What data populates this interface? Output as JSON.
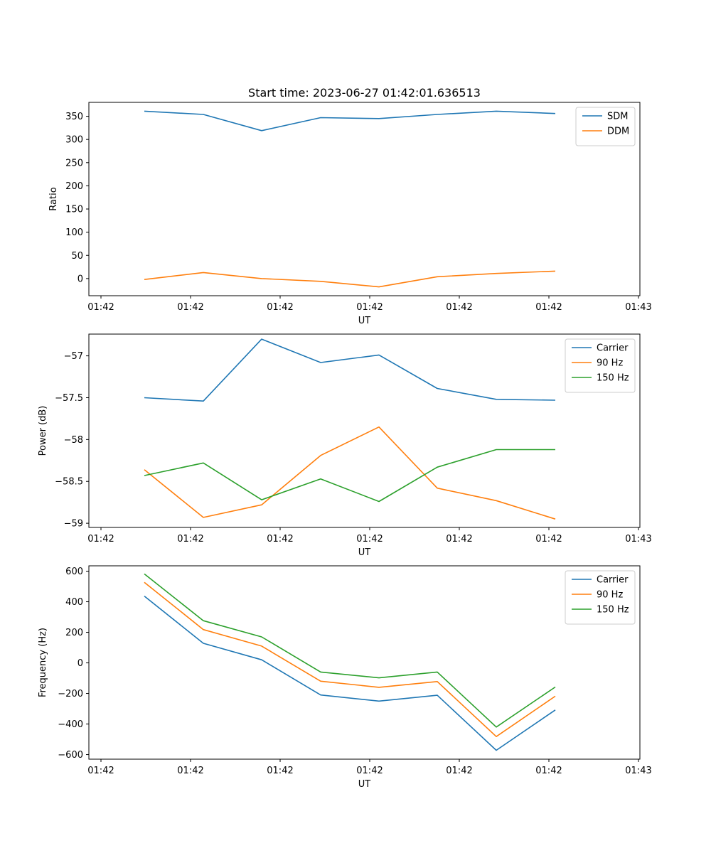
{
  "chart_data": [
    {
      "type": "line",
      "title": "Start time: 2023-06-27 01:42:01.636513",
      "xlabel": "UT",
      "ylabel": "Ratio",
      "x_tick_labels": [
        "01:42",
        "01:42",
        "01:42",
        "01:42",
        "01:42",
        "01:42",
        "01:43"
      ],
      "ylim": [
        -37,
        380
      ],
      "yticks": [
        0,
        50,
        100,
        150,
        200,
        250,
        300,
        350
      ],
      "legend_position": "top-right",
      "series": [
        {
          "name": "SDM",
          "color": "#1f77b4",
          "values": [
            361,
            354,
            319,
            347,
            345,
            354,
            361,
            356
          ]
        },
        {
          "name": "DDM",
          "color": "#ff7f0e",
          "values": [
            -2,
            13,
            0,
            -6,
            -18,
            4,
            11,
            16
          ]
        }
      ]
    },
    {
      "type": "line",
      "title": "",
      "xlabel": "UT",
      "ylabel": "Power (dB)",
      "x_tick_labels": [
        "01:42",
        "01:42",
        "01:42",
        "01:42",
        "01:42",
        "01:42",
        "01:43"
      ],
      "ylim": [
        -59.05,
        -56.74
      ],
      "yticks": [
        -59.0,
        -58.5,
        -58.0,
        -57.5,
        -57.0
      ],
      "legend_position": "top-right",
      "series": [
        {
          "name": "Carrier",
          "color": "#1f77b4",
          "values": [
            -57.5,
            -57.54,
            -56.8,
            -57.08,
            -56.99,
            -57.39,
            -57.52,
            -57.53
          ]
        },
        {
          "name": "90 Hz",
          "color": "#ff7f0e",
          "values": [
            -58.36,
            -58.93,
            -58.78,
            -58.19,
            -57.85,
            -58.58,
            -58.73,
            -58.95
          ]
        },
        {
          "name": "150 Hz",
          "color": "#2ca02c",
          "values": [
            -58.43,
            -58.28,
            -58.72,
            -58.47,
            -58.74,
            -58.33,
            -58.12,
            -58.12
          ]
        }
      ]
    },
    {
      "type": "line",
      "title": "",
      "xlabel": "UT",
      "ylabel": "Frequency (Hz)",
      "x_tick_labels": [
        "01:42",
        "01:42",
        "01:42",
        "01:42",
        "01:42",
        "01:42",
        "01:43"
      ],
      "ylim": [
        -630,
        635
      ],
      "yticks": [
        -600,
        -400,
        -200,
        0,
        200,
        400,
        600
      ],
      "legend_position": "top-right",
      "series": [
        {
          "name": "Carrier",
          "color": "#1f77b4",
          "values": [
            437,
            128,
            20,
            -210,
            -250,
            -212,
            -572,
            -308
          ]
        },
        {
          "name": "90 Hz",
          "color": "#ff7f0e",
          "values": [
            527,
            218,
            110,
            -120,
            -160,
            -122,
            -482,
            -218
          ]
        },
        {
          "name": "150 Hz",
          "color": "#2ca02c",
          "values": [
            582,
            276,
            170,
            -60,
            -98,
            -60,
            -420,
            -158
          ]
        }
      ]
    }
  ]
}
